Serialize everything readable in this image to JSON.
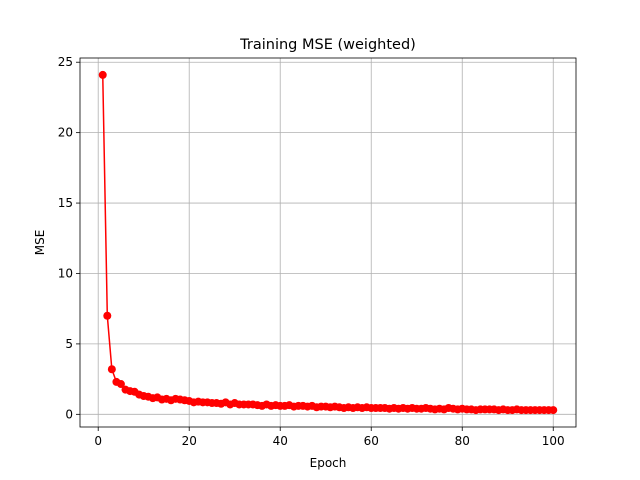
{
  "chart_data": {
    "type": "line",
    "title": "Training MSE (weighted)",
    "xlabel": "Epoch",
    "ylabel": "MSE",
    "xlim": [
      -4,
      105
    ],
    "ylim": [
      -0.9,
      25.3
    ],
    "xticks": [
      0,
      20,
      40,
      60,
      80,
      100
    ],
    "yticks": [
      0,
      5,
      10,
      15,
      20,
      25
    ],
    "grid": true,
    "legend": "none",
    "colors": {
      "series": "#ff0000"
    },
    "series": [
      {
        "marker": "circle",
        "x": [
          1,
          2,
          3,
          4,
          5,
          6,
          7,
          8,
          9,
          10,
          11,
          12,
          13,
          14,
          15,
          16,
          17,
          18,
          19,
          20,
          21,
          22,
          23,
          24,
          25,
          26,
          27,
          28,
          29,
          30,
          31,
          32,
          33,
          34,
          35,
          36,
          37,
          38,
          39,
          40,
          41,
          42,
          43,
          44,
          45,
          46,
          47,
          48,
          49,
          50,
          51,
          52,
          53,
          54,
          55,
          56,
          57,
          58,
          59,
          60,
          61,
          62,
          63,
          64,
          65,
          66,
          67,
          68,
          69,
          70,
          71,
          72,
          73,
          74,
          75,
          76,
          77,
          78,
          79,
          80,
          81,
          82,
          83,
          84,
          85,
          86,
          87,
          88,
          89,
          90,
          91,
          92,
          93,
          94,
          95,
          96,
          97,
          98,
          99,
          100
        ],
        "values": [
          24.1,
          7.0,
          3.2,
          2.3,
          2.15,
          1.75,
          1.65,
          1.6,
          1.4,
          1.3,
          1.25,
          1.15,
          1.2,
          1.05,
          1.1,
          1.0,
          1.1,
          1.05,
          1.0,
          0.95,
          0.85,
          0.9,
          0.85,
          0.85,
          0.8,
          0.8,
          0.75,
          0.85,
          0.7,
          0.8,
          0.7,
          0.7,
          0.7,
          0.7,
          0.65,
          0.6,
          0.7,
          0.6,
          0.65,
          0.6,
          0.6,
          0.65,
          0.55,
          0.6,
          0.6,
          0.55,
          0.6,
          0.5,
          0.55,
          0.55,
          0.5,
          0.55,
          0.5,
          0.45,
          0.5,
          0.45,
          0.5,
          0.45,
          0.5,
          0.45,
          0.45,
          0.45,
          0.45,
          0.4,
          0.45,
          0.4,
          0.45,
          0.4,
          0.45,
          0.4,
          0.4,
          0.45,
          0.4,
          0.35,
          0.4,
          0.35,
          0.45,
          0.4,
          0.35,
          0.4,
          0.35,
          0.35,
          0.3,
          0.35,
          0.35,
          0.35,
          0.35,
          0.3,
          0.35,
          0.3,
          0.3,
          0.35,
          0.3,
          0.3,
          0.3,
          0.3,
          0.3,
          0.3,
          0.3,
          0.3
        ]
      }
    ]
  }
}
